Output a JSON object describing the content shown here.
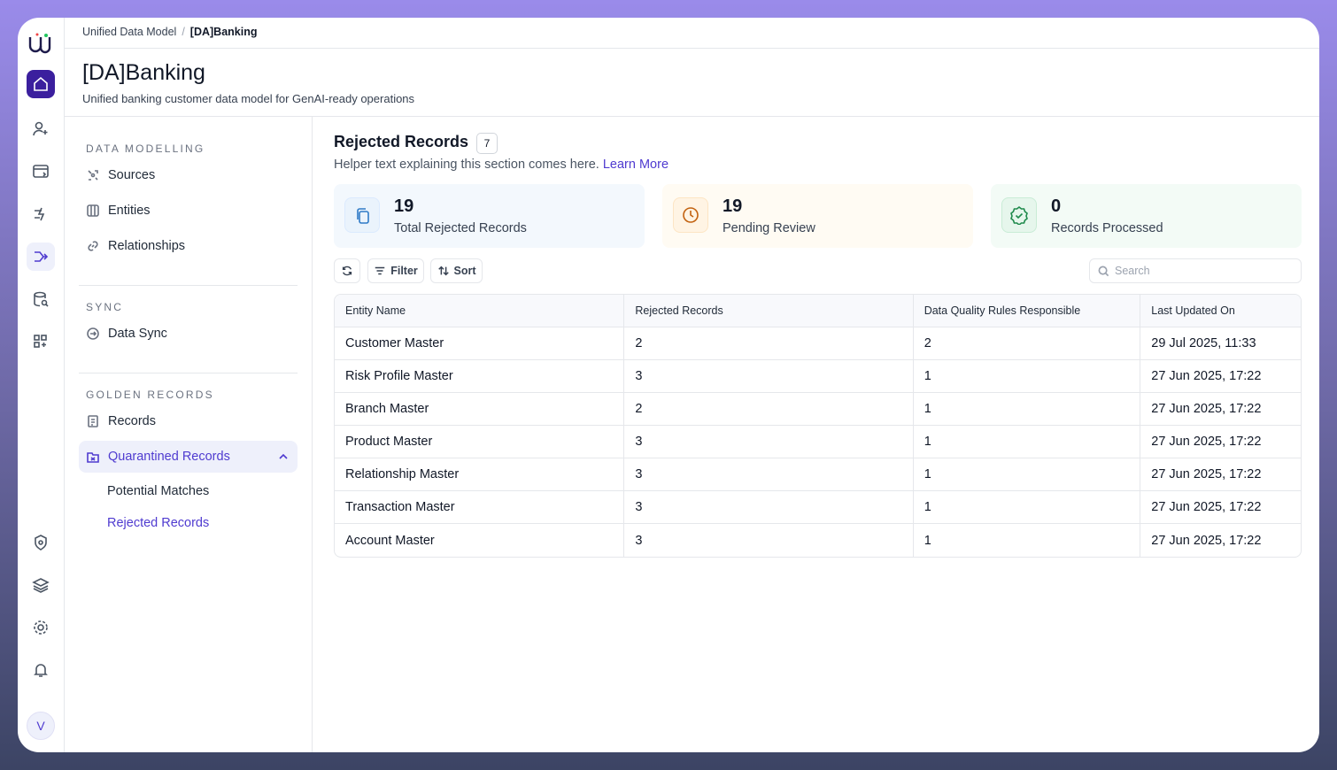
{
  "breadcrumb": [
    "Unified Data Model",
    "[DA]Banking"
  ],
  "header": {
    "title": "[DA]Banking",
    "subtitle": "Unified banking customer data model for GenAI-ready operations"
  },
  "sidebar": {
    "sections": [
      {
        "heading": "DATA MODELLING",
        "items": [
          "Sources",
          "Entities",
          "Relationships"
        ]
      },
      {
        "heading": "SYNC",
        "items": [
          "Data Sync"
        ]
      },
      {
        "heading": "GOLDEN RECORDS",
        "items": [
          "Records",
          "Quarantined Records"
        ]
      }
    ],
    "subitems": [
      "Potential Matches",
      "Rejected Records"
    ]
  },
  "section": {
    "title": "Rejected Records",
    "count": 7,
    "helper": "Helper text explaining this section comes here.",
    "link": "Learn More"
  },
  "stats": [
    {
      "value": 19,
      "label": "Total Rejected Records"
    },
    {
      "value": 19,
      "label": "Pending Review"
    },
    {
      "value": 0,
      "label": "Records Processed"
    }
  ],
  "toolbar": {
    "filter": "Filter",
    "sort": "Sort",
    "search": "Search"
  },
  "table": {
    "columns": [
      "Entity Name",
      "Rejected Records",
      "Data Quality Rules Responsible",
      "Last Updated On"
    ],
    "rows": [
      [
        "Customer Master",
        2,
        2,
        "29 Jul 2025, 11:33"
      ],
      [
        "Risk Profile Master",
        3,
        1,
        "27 Jun 2025, 17:22"
      ],
      [
        "Branch Master",
        2,
        1,
        "27 Jun 2025, 17:22"
      ],
      [
        "Product Master",
        3,
        1,
        "27 Jun 2025, 17:22"
      ],
      [
        "Relationship Master",
        3,
        1,
        "27 Jun 2025, 17:22"
      ],
      [
        "Transaction Master",
        3,
        1,
        "27 Jun 2025, 17:22"
      ],
      [
        "Account Master",
        3,
        1,
        "27 Jun 2025, 17:22"
      ]
    ]
  },
  "user": "V"
}
